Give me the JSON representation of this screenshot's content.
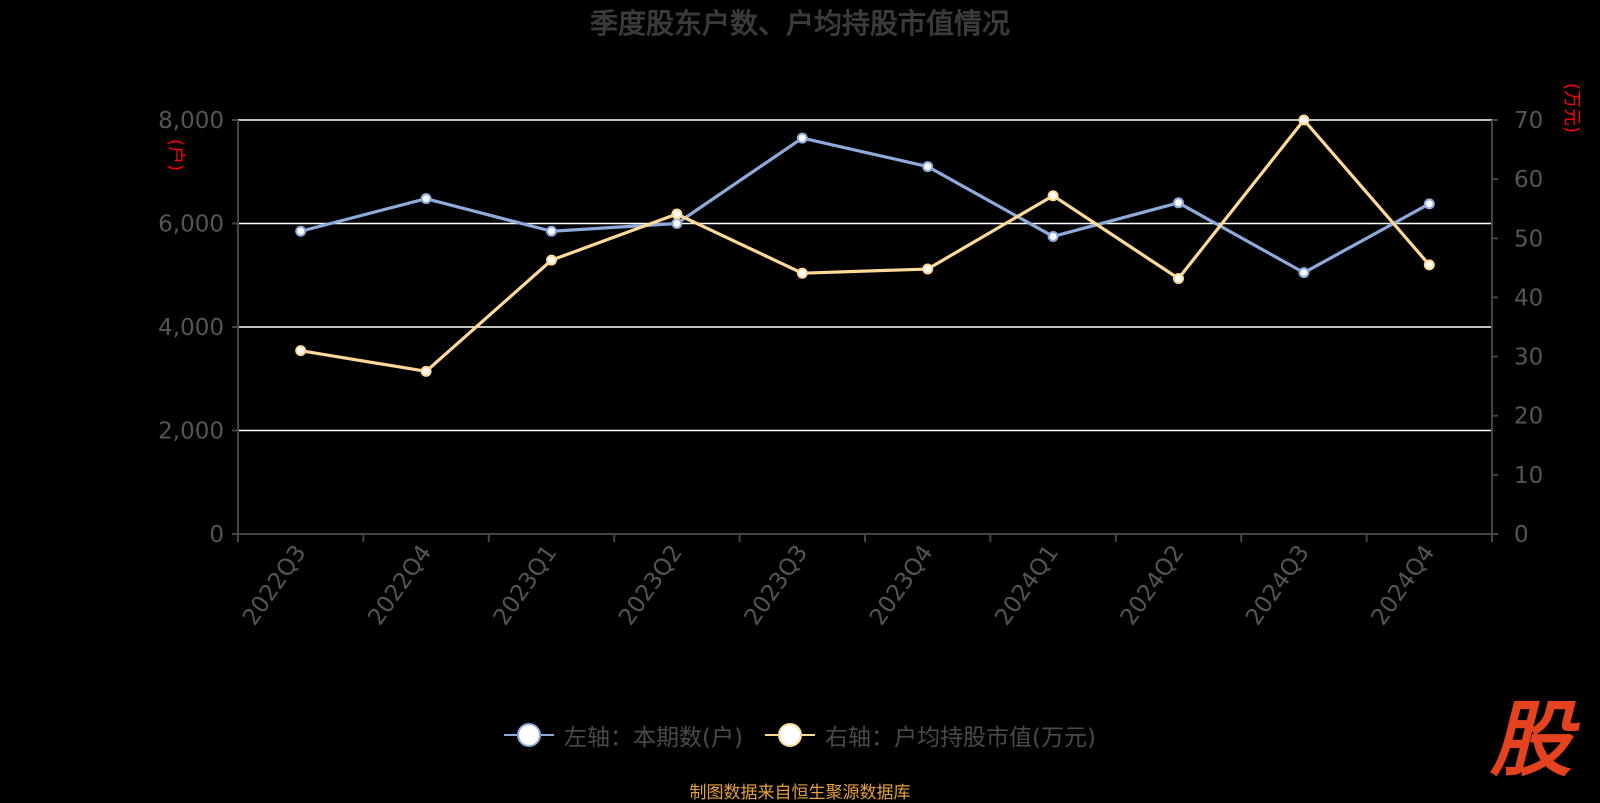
{
  "title": "季度股东户数、户均持股市值情况",
  "source": "制图数据来自恒生聚源数据库",
  "logo_text": "股",
  "legend": {
    "left_label": "左轴：本期数(户)",
    "right_label": "右轴：户均持股市值(万元)"
  },
  "colors": {
    "background": "#000000",
    "left_series": "#8eaadb",
    "right_series": "#ffd998",
    "axis_unit": "#ff0000",
    "tick_text": "#555555",
    "grid": "#ffffff"
  },
  "chart_data": {
    "type": "line",
    "title": "季度股东户数、户均持股市值情况",
    "categories": [
      "2022Q3",
      "2022Q4",
      "2023Q1",
      "2023Q2",
      "2023Q3",
      "2023Q4",
      "2024Q1",
      "2024Q2",
      "2024Q3",
      "2024Q4"
    ],
    "left_axis": {
      "unit": "(户)",
      "ylim": [
        0,
        8000
      ],
      "ticks": [
        0,
        2000,
        4000,
        6000,
        8000
      ],
      "tick_labels": [
        "0",
        "2,000",
        "4,000",
        "6,000",
        "8,000"
      ]
    },
    "right_axis": {
      "unit": "(万元)",
      "ylim": [
        0,
        70
      ],
      "ticks": [
        0,
        10,
        20,
        30,
        40,
        50,
        60,
        70
      ],
      "tick_labels": [
        "0",
        "10",
        "20",
        "30",
        "40",
        "50",
        "60",
        "70"
      ]
    },
    "series": [
      {
        "name": "左轴：本期数(户)",
        "axis": "left",
        "values": [
          5850,
          6480,
          5850,
          6000,
          7650,
          7100,
          5750,
          6400,
          5050,
          6380
        ]
      },
      {
        "name": "右轴：户均持股市值(万元)",
        "axis": "right",
        "values": [
          31.0,
          27.5,
          46.3,
          54.1,
          44.1,
          44.8,
          57.2,
          43.2,
          70.0,
          45.5
        ]
      }
    ],
    "grid": true,
    "legend_position": "bottom"
  }
}
